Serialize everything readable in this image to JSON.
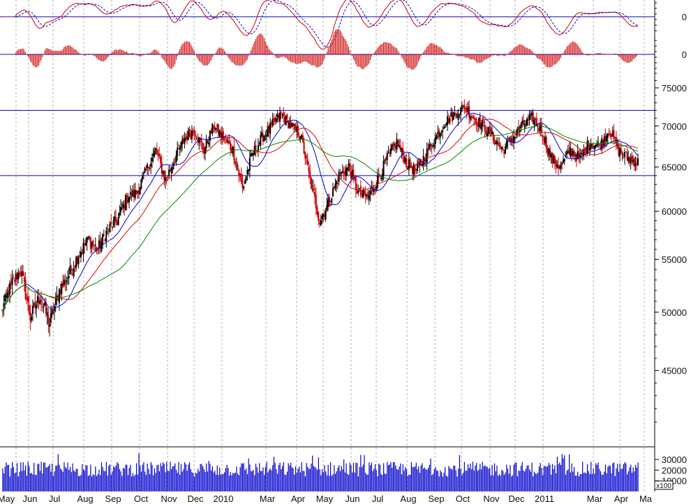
{
  "chart_data": [
    {
      "type": "line",
      "panel": "macd",
      "zero_label": "0",
      "series": [],
      "reference_lines": [
        0
      ]
    },
    {
      "type": "bar",
      "panel": "macd-histogram",
      "zero_label": "0"
    },
    {
      "type": "candlestick",
      "panel": "price",
      "ylim": [
        40000,
        77500
      ],
      "y_ticks": [
        45000,
        50000,
        55000,
        60000,
        65000,
        70000,
        75000
      ],
      "y_tick_labels": [
        "45000",
        "50000",
        "55000",
        "60000",
        "65000",
        "70000",
        "75000"
      ],
      "horizontal_lines": [
        72000,
        64000
      ],
      "x_labels": [
        "May",
        "Jun",
        "Jul",
        "Aug",
        "Sep",
        "Oct",
        "Nov",
        "Dec",
        "2010",
        "Mar",
        "Apr",
        "May",
        "Jun",
        "Jul",
        "Aug",
        "Sep",
        "Oct",
        "Nov",
        "Dec",
        "2011",
        "Mar",
        "Apr",
        "Ma"
      ],
      "closes_anchor": [
        [
          0,
          50000
        ],
        [
          2,
          52500
        ],
        [
          4,
          54000
        ],
        [
          6,
          49500
        ],
        [
          8,
          51500
        ],
        [
          10,
          49000
        ],
        [
          12,
          52000
        ],
        [
          14,
          53500
        ],
        [
          16,
          55500
        ],
        [
          18,
          57000
        ],
        [
          20,
          56000
        ],
        [
          22,
          58000
        ],
        [
          24,
          59000
        ],
        [
          26,
          61500
        ],
        [
          28,
          62000
        ],
        [
          30,
          64500
        ],
        [
          32,
          67000
        ],
        [
          34,
          63500
        ],
        [
          36,
          66000
        ],
        [
          38,
          68500
        ],
        [
          40,
          69500
        ],
        [
          42,
          67000
        ],
        [
          44,
          70000
        ],
        [
          46,
          68500
        ],
        [
          48,
          67000
        ],
        [
          50,
          62500
        ],
        [
          52,
          66500
        ],
        [
          54,
          68500
        ],
        [
          56,
          70000
        ],
        [
          58,
          71500
        ],
        [
          60,
          70000
        ],
        [
          62,
          69000
        ],
        [
          64,
          63500
        ],
        [
          66,
          59000
        ],
        [
          68,
          61000
        ],
        [
          70,
          64000
        ],
        [
          72,
          65000
        ],
        [
          74,
          62000
        ],
        [
          76,
          61500
        ],
        [
          78,
          63500
        ],
        [
          80,
          66000
        ],
        [
          82,
          68000
        ],
        [
          84,
          65500
        ],
        [
          86,
          64500
        ],
        [
          88,
          66500
        ],
        [
          90,
          68500
        ],
        [
          92,
          70500
        ],
        [
          94,
          71500
        ],
        [
          96,
          72500
        ],
        [
          98,
          71000
        ],
        [
          100,
          70000
        ],
        [
          102,
          68500
        ],
        [
          104,
          67000
        ],
        [
          106,
          68500
        ],
        [
          108,
          70000
        ],
        [
          110,
          71000
        ],
        [
          112,
          69500
        ],
        [
          114,
          66000
        ],
        [
          116,
          65000
        ],
        [
          118,
          67000
        ],
        [
          120,
          66000
        ],
        [
          122,
          68000
        ],
        [
          124,
          67500
        ],
        [
          126,
          69500
        ],
        [
          128,
          67000
        ],
        [
          130,
          66000
        ],
        [
          132,
          65500
        ]
      ]
    },
    {
      "type": "bar",
      "panel": "volume",
      "y_ticks": [
        10000,
        20000,
        30000
      ],
      "y_tick_labels": [
        "10000",
        "20000",
        "30000"
      ],
      "unit_label": "x100"
    }
  ],
  "colors": {
    "candle_up": "#000000",
    "candle_down": "#cc0000",
    "ma_fast": "#0000cc",
    "ma_mid": "#dd0000",
    "ma_slow": "#008800",
    "reference_line": "#0000bb",
    "grid": "#b0b0b0",
    "volume": "#0000cc",
    "macd_hist": "#cc0000",
    "macd_line": "#cc0000",
    "macd_signal": "#0000cc"
  }
}
